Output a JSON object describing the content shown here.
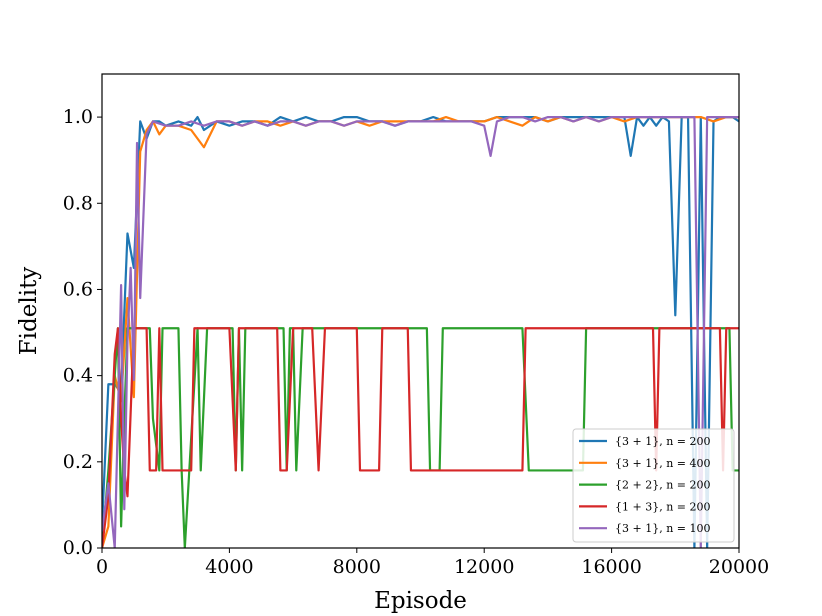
{
  "chart_data": {
    "type": "line",
    "title": "",
    "xlabel": "Episode",
    "ylabel": "Fidelity",
    "xlim": [
      0,
      20000
    ],
    "ylim": [
      0,
      1.1
    ],
    "xticks": [
      0,
      4000,
      8000,
      12000,
      16000,
      20000
    ],
    "xtick_labels": [
      "0",
      "4000",
      "8000",
      "12000",
      "16000",
      "20000"
    ],
    "yticks": [
      0.0,
      0.2,
      0.4,
      0.6,
      0.8,
      1.0
    ],
    "ytick_labels": [
      "0.0",
      "0.2",
      "0.4",
      "0.6",
      "0.8",
      "1.0"
    ],
    "grid": false,
    "legend_position": "lower-right",
    "series": [
      {
        "name": "{3 + 1}, n = 200",
        "color": "#1f77b4",
        "x": [
          0,
          200,
          400,
          600,
          800,
          1000,
          1200,
          1400,
          1600,
          1800,
          2000,
          2400,
          2800,
          3000,
          3200,
          3600,
          4000,
          4400,
          4800,
          5200,
          5600,
          6000,
          6400,
          6800,
          7200,
          7600,
          8000,
          8400,
          8800,
          9200,
          9600,
          10000,
          10400,
          10800,
          11200,
          11600,
          12000,
          12400,
          12800,
          13200,
          13600,
          14000,
          14400,
          14800,
          15200,
          15600,
          16000,
          16400,
          16600,
          16800,
          17000,
          17200,
          17400,
          17600,
          17800,
          18000,
          18200,
          18400,
          18600,
          18800,
          19000,
          19200,
          19400,
          19600,
          19800,
          20000
        ],
        "y": [
          0.05,
          0.38,
          0.38,
          0.36,
          0.73,
          0.65,
          0.99,
          0.95,
          0.99,
          0.99,
          0.98,
          0.99,
          0.98,
          1.0,
          0.97,
          0.99,
          0.98,
          0.99,
          0.99,
          0.98,
          1.0,
          0.99,
          1.0,
          0.99,
          0.99,
          1.0,
          1.0,
          0.99,
          0.99,
          0.98,
          0.99,
          0.99,
          1.0,
          0.99,
          0.99,
          0.99,
          0.99,
          1.0,
          1.0,
          1.0,
          1.0,
          0.99,
          1.0,
          1.0,
          1.0,
          1.0,
          1.0,
          1.0,
          0.91,
          1.0,
          0.98,
          1.0,
          0.98,
          1.0,
          0.99,
          0.54,
          1.0,
          1.0,
          0.0,
          1.0,
          0.0,
          0.99,
          1.0,
          1.0,
          1.0,
          0.99
        ]
      },
      {
        "name": "{3 + 1}, n = 400",
        "color": "#ff7f0e",
        "x": [
          0,
          200,
          400,
          600,
          800,
          1000,
          1200,
          1400,
          1600,
          1800,
          2000,
          2400,
          2800,
          3200,
          3600,
          4000,
          4400,
          4800,
          5200,
          5600,
          6000,
          6400,
          6800,
          7200,
          7600,
          8000,
          8400,
          8800,
          9200,
          9600,
          10000,
          10400,
          10800,
          11200,
          11600,
          12000,
          12400,
          12800,
          13200,
          13600,
          14000,
          14400,
          14800,
          15200,
          15600,
          16000,
          16400,
          16800,
          17200,
          17600,
          18000,
          18400,
          18800,
          19200,
          19600,
          20000
        ],
        "y": [
          0.0,
          0.05,
          0.4,
          0.34,
          0.58,
          0.35,
          0.92,
          0.97,
          0.99,
          0.96,
          0.98,
          0.98,
          0.97,
          0.93,
          0.99,
          0.99,
          0.98,
          0.99,
          0.99,
          0.98,
          0.99,
          0.98,
          0.99,
          0.99,
          0.98,
          0.99,
          0.98,
          0.99,
          0.99,
          0.99,
          0.99,
          0.99,
          1.0,
          0.99,
          0.99,
          0.99,
          1.0,
          0.99,
          0.98,
          1.0,
          0.99,
          1.0,
          0.99,
          1.0,
          0.99,
          1.0,
          0.99,
          1.0,
          1.0,
          1.0,
          1.0,
          1.0,
          1.0,
          0.99,
          1.0,
          1.0
        ]
      },
      {
        "name": "{2 + 2}, n = 200",
        "color": "#2ca02c",
        "x": [
          0,
          200,
          400,
          500,
          600,
          700,
          800,
          1000,
          1100,
          1200,
          1500,
          1600,
          1800,
          1900,
          2000,
          2400,
          2500,
          2600,
          3000,
          3100,
          3300,
          3400,
          4100,
          4200,
          4300,
          4400,
          4500,
          4600,
          4700,
          4900,
          5000,
          5700,
          5800,
          5900,
          6000,
          6100,
          6300,
          6400,
          10200,
          10300,
          10600,
          10700,
          13100,
          13200,
          13400,
          13500,
          15100,
          15200,
          19700,
          19800,
          20000
        ],
        "y": [
          0.0,
          0.18,
          0.4,
          0.51,
          0.05,
          0.3,
          0.51,
          0.51,
          0.51,
          0.51,
          0.51,
          0.3,
          0.18,
          0.51,
          0.51,
          0.51,
          0.18,
          0.0,
          0.51,
          0.18,
          0.51,
          0.51,
          0.51,
          0.18,
          0.51,
          0.18,
          0.51,
          0.51,
          0.51,
          0.51,
          0.51,
          0.51,
          0.18,
          0.51,
          0.51,
          0.18,
          0.51,
          0.51,
          0.51,
          0.18,
          0.18,
          0.51,
          0.51,
          0.51,
          0.18,
          0.18,
          0.18,
          0.51,
          0.51,
          0.18,
          0.18
        ]
      },
      {
        "name": "{1 + 3}, n = 200",
        "color": "#d62728",
        "x": [
          0,
          200,
          400,
          500,
          600,
          700,
          800,
          1000,
          1200,
          1400,
          1500,
          1700,
          1800,
          1900,
          2000,
          2800,
          2900,
          3000,
          4000,
          4200,
          4300,
          4500,
          5500,
          5600,
          5800,
          6000,
          6600,
          6800,
          7000,
          8000,
          8100,
          8700,
          8800,
          9600,
          9700,
          12000,
          12200,
          12900,
          13000,
          13200,
          13300,
          17300,
          17400,
          17500,
          19400,
          19500,
          19600,
          20000
        ],
        "y": [
          0.0,
          0.12,
          0.45,
          0.51,
          0.3,
          0.18,
          0.12,
          0.51,
          0.51,
          0.51,
          0.18,
          0.18,
          0.51,
          0.18,
          0.18,
          0.18,
          0.51,
          0.51,
          0.51,
          0.18,
          0.51,
          0.51,
          0.51,
          0.18,
          0.18,
          0.51,
          0.51,
          0.18,
          0.51,
          0.51,
          0.18,
          0.18,
          0.51,
          0.51,
          0.18,
          0.18,
          0.18,
          0.18,
          0.18,
          0.18,
          0.51,
          0.51,
          0.18,
          0.51,
          0.51,
          0.18,
          0.51,
          0.51
        ]
      },
      {
        "name": "{3 + 1}, n = 100",
        "color": "#9467bd",
        "x": [
          0,
          200,
          400,
          600,
          700,
          800,
          900,
          1000,
          1100,
          1200,
          1400,
          1600,
          2000,
          2400,
          2800,
          3200,
          3600,
          4000,
          4400,
          4800,
          5200,
          5600,
          6000,
          6400,
          6800,
          7200,
          7600,
          8000,
          8400,
          8800,
          9200,
          9600,
          10000,
          10400,
          10800,
          11200,
          11600,
          12000,
          12200,
          12400,
          12800,
          13200,
          13600,
          14000,
          14400,
          14800,
          15200,
          15600,
          16000,
          16400,
          16800,
          17200,
          17600,
          18000,
          18200,
          18400,
          18600,
          18800,
          19000,
          19200,
          19400,
          19600,
          20000
        ],
        "y": [
          0.04,
          0.15,
          0.0,
          0.61,
          0.09,
          0.48,
          0.65,
          0.39,
          0.94,
          0.58,
          0.96,
          0.99,
          0.98,
          0.98,
          0.99,
          0.98,
          0.99,
          0.99,
          0.98,
          0.99,
          0.98,
          0.99,
          0.99,
          0.98,
          0.99,
          0.99,
          0.98,
          0.99,
          0.99,
          0.99,
          0.98,
          0.99,
          0.99,
          0.99,
          0.99,
          0.99,
          0.99,
          0.98,
          0.91,
          0.99,
          1.0,
          1.0,
          0.99,
          1.0,
          1.0,
          0.99,
          1.0,
          0.99,
          1.0,
          1.0,
          1.0,
          1.0,
          1.0,
          1.0,
          1.0,
          1.0,
          1.0,
          0.0,
          1.0,
          1.0,
          1.0,
          1.0,
          1.0
        ]
      }
    ]
  }
}
